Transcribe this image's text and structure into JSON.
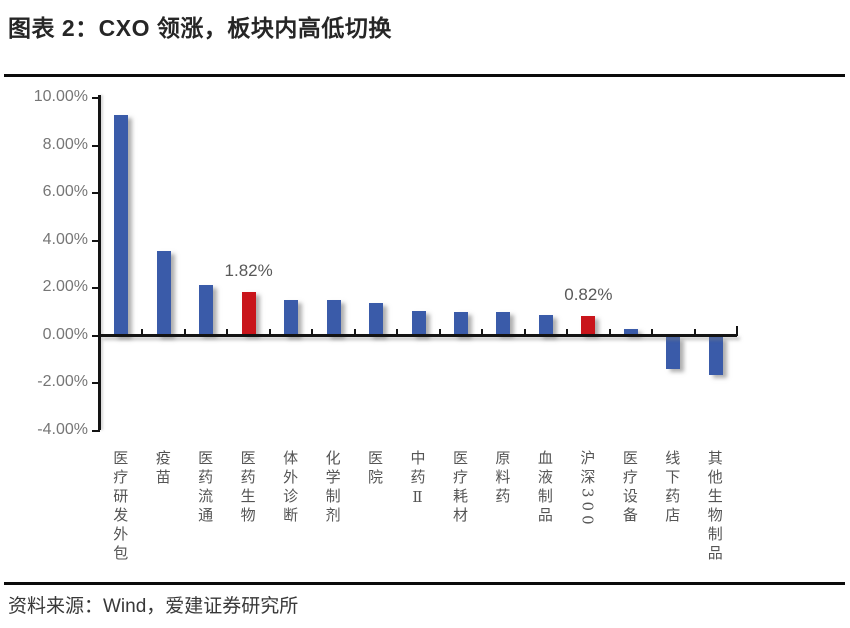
{
  "header": {
    "title": "图表 2：CXO 领涨，板块内高低切换"
  },
  "footer": {
    "source": "资料来源：Wind，爱建证券研究所"
  },
  "colors": {
    "bar_default": "#3A5BA9",
    "bar_highlight": "#C9151B",
    "axis": "#141414",
    "tick_label": "#767676",
    "category_label": "#555555",
    "data_label": "#595959"
  },
  "chart_data": {
    "type": "bar",
    "title": "",
    "xlabel": "",
    "ylabel": "",
    "grid": false,
    "legend": null,
    "ylim": [
      -4,
      10
    ],
    "categories": [
      "医疗研发外包",
      "疫苗",
      "医药流通",
      "医药生物",
      "体外诊断",
      "化学制剂",
      "医院",
      "中药Ⅱ",
      "医疗耗材",
      "原料药",
      "血液制品",
      "沪深300",
      "医疗设备",
      "线下药店",
      "其他生物制品"
    ],
    "values": [
      9.3,
      3.55,
      2.13,
      1.82,
      1.5,
      1.5,
      1.35,
      1.05,
      1.0,
      0.97,
      0.85,
      0.82,
      0.26,
      -1.35,
      -1.6
    ],
    "highlight_indices": [
      3,
      11
    ],
    "data_labels": [
      {
        "index": 3,
        "label": "1.82%"
      },
      {
        "index": 11,
        "label": "0.82%"
      }
    ],
    "yticks": [
      {
        "v": 10,
        "label": "10.00%"
      },
      {
        "v": 8,
        "label": "8.00%"
      },
      {
        "v": 6,
        "label": "6.00%"
      },
      {
        "v": 4,
        "label": "4.00%"
      },
      {
        "v": 2,
        "label": "2.00%"
      },
      {
        "v": 0,
        "label": "0.00%"
      },
      {
        "v": -2,
        "label": "-2.00%"
      },
      {
        "v": -4,
        "label": "-4.00%"
      }
    ]
  }
}
